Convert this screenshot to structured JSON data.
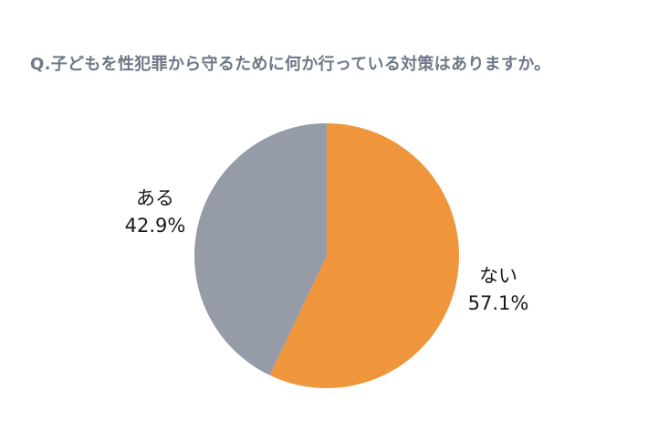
{
  "title": "Q.子どもを性犯罪から守るために何か行っている対策はありますか。",
  "chart_data": {
    "type": "pie",
    "title": "Q.子どもを性犯罪から守るために何か行っている対策はありますか。",
    "categories": [
      "ない",
      "ある"
    ],
    "values": [
      57.1,
      42.9
    ],
    "unit": "%",
    "colors": [
      "#ef963d",
      "#959ba7"
    ],
    "start_angle": "12 o'clock",
    "direction": "clockwise",
    "legend": "none (direct labels)",
    "labels": [
      {
        "name": "ない",
        "value": "57.1%",
        "position": "right"
      },
      {
        "name": "ある",
        "value": "42.9%",
        "position": "left"
      }
    ]
  },
  "labels": {
    "aru": {
      "name": "ある",
      "pct": "42.9%"
    },
    "nai": {
      "name": "ない",
      "pct": "57.1%"
    }
  },
  "colors": {
    "nai": "#ef963d",
    "aru": "#959ba7",
    "title": "#6f7888"
  }
}
